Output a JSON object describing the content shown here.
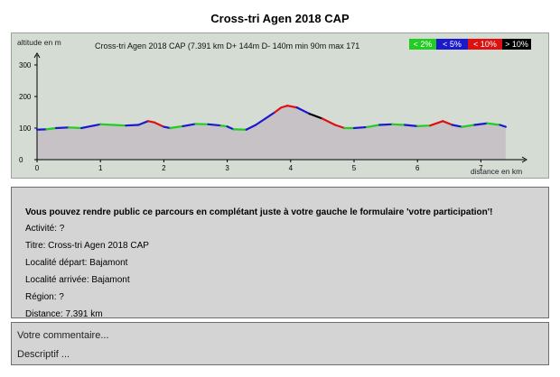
{
  "page": {
    "title": "Cross-tri Agen 2018 CAP"
  },
  "chart_data": {
    "type": "area",
    "ylabel": "altitude en m",
    "xlabel": "distance en km",
    "summary": "Cross-tri Agen 2018 CAP (7.391 km  D+ 144m  D- 140m  min 90m  max 171",
    "legend": [
      {
        "label": "< 2%",
        "color": "#22cc22"
      },
      {
        "label": "< 5%",
        "color": "#1a1acc"
      },
      {
        "label": "< 10%",
        "color": "#dd1111"
      },
      {
        "label": "> 10%",
        "color": "#000000"
      }
    ],
    "xlim": [
      0,
      7.8
    ],
    "ylim": [
      0,
      330
    ],
    "x_ticks": [
      0,
      1,
      2,
      3,
      4,
      5,
      6,
      7
    ],
    "y_ticks": [
      0,
      100,
      200,
      300
    ],
    "grid": false,
    "x": [
      0,
      0.15,
      0.3,
      0.5,
      0.7,
      0.9,
      1.0,
      1.2,
      1.4,
      1.6,
      1.75,
      1.85,
      2.0,
      2.1,
      2.3,
      2.5,
      2.7,
      2.9,
      3.0,
      3.1,
      3.3,
      3.45,
      3.6,
      3.75,
      3.85,
      3.95,
      4.1,
      4.3,
      4.5,
      4.7,
      4.85,
      5.0,
      5.2,
      5.4,
      5.6,
      5.8,
      6.0,
      6.2,
      6.4,
      6.55,
      6.7,
      6.9,
      7.1,
      7.3,
      7.391
    ],
    "y": [
      95,
      96,
      100,
      102,
      100,
      108,
      112,
      110,
      108,
      110,
      122,
      118,
      104,
      100,
      106,
      113,
      112,
      108,
      105,
      96,
      95,
      110,
      130,
      150,
      165,
      171,
      165,
      145,
      130,
      110,
      100,
      100,
      103,
      110,
      112,
      110,
      106,
      108,
      122,
      110,
      104,
      110,
      115,
      110,
      104
    ],
    "segment_colors": [
      "#1a1acc",
      "#22cc22",
      "#1a1acc",
      "#22cc22",
      "#1a1acc",
      "#1a1acc",
      "#22cc22",
      "#22cc22",
      "#1a1acc",
      "#1a1acc",
      "#dd1111",
      "#dd1111",
      "#1a1acc",
      "#22cc22",
      "#1a1acc",
      "#22cc22",
      "#1a1acc",
      "#22cc22",
      "#1a1acc",
      "#22cc22",
      "#1a1acc",
      "#1a1acc",
      "#1a1acc",
      "#dd1111",
      "#dd1111",
      "#dd1111",
      "#1a1acc",
      "#000000",
      "#dd1111",
      "#dd1111",
      "#22cc22",
      "#1a1acc",
      "#22cc22",
      "#1a1acc",
      "#22cc22",
      "#1a1acc",
      "#22cc22",
      "#dd1111",
      "#dd1111",
      "#1a1acc",
      "#22cc22",
      "#1a1acc",
      "#22cc22",
      "#1a1acc"
    ]
  },
  "info": {
    "heading": "Vous pouvez rendre public ce parcours en complétant juste à votre gauche le formulaire 'votre participation'!",
    "activity": "Activité: ?",
    "titre": "Titre: Cross-tri Agen 2018 CAP",
    "depart": "Localité départ: Bajamont",
    "arrivee": "Localité arrivée: Bajamont",
    "region": "Région: ?",
    "distance": "Distance: 7.391 km"
  },
  "comment": {
    "comment_label": "Votre commentaire...",
    "descriptif_label": "Descriptif ..."
  }
}
